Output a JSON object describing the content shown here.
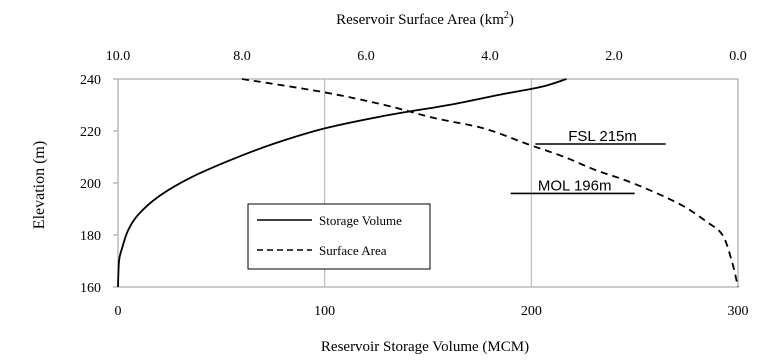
{
  "chart_data": {
    "type": "line",
    "title": "",
    "axes": {
      "bottom": {
        "label": "Reservoir Storage Volume (MCM)",
        "min": 0,
        "max": 300,
        "ticks": [
          "0",
          "100",
          "200",
          "300"
        ],
        "tick_values": [
          0,
          100,
          200,
          300
        ]
      },
      "top": {
        "label_main": "Reservoir Surface Area (km",
        "label_sup": "2",
        "label_end": ")",
        "min": 10.0,
        "max": 0.0,
        "reversed": true,
        "ticks": [
          "10.0",
          "8.0",
          "6.0",
          "4.0",
          "2.0",
          "0.0"
        ],
        "tick_values": [
          10.0,
          8.0,
          6.0,
          4.0,
          2.0,
          0.0
        ]
      },
      "left": {
        "label": "Elevation (m)",
        "min": 160,
        "max": 240,
        "ticks": [
          "160",
          "180",
          "200",
          "220",
          "240"
        ],
        "tick_values": [
          160,
          180,
          200,
          220,
          240
        ]
      }
    },
    "grid": {
      "vertical": true,
      "horizontal": false
    },
    "legend": {
      "placement": "center-left",
      "entries": [
        "Storage Volume",
        "Surface Area"
      ]
    },
    "series": [
      {
        "name": "Storage Volume",
        "style": "solid",
        "axis": "bottom",
        "x": [
          0,
          0.5,
          2,
          5,
          10,
          20,
          35,
          55,
          75,
          100,
          130,
          160,
          185,
          205,
          217
        ],
        "y": [
          160,
          170,
          175,
          182,
          188,
          195,
          202,
          209,
          215,
          221,
          226,
          230,
          234,
          237,
          240
        ]
      },
      {
        "name": "Surface Area",
        "style": "dashed",
        "axis": "top",
        "x": [
          8.0,
          6.7,
          5.7,
          4.9,
          4.1,
          3.4,
          2.8,
          2.3,
          1.7,
          0.95,
          0.5,
          0.25,
          0.1,
          0.0
        ],
        "y": [
          240,
          235,
          230,
          225,
          221,
          215,
          210,
          205,
          200,
          192,
          185,
          180,
          170,
          160
        ]
      }
    ],
    "annotations": [
      {
        "label": "FSL 215m",
        "elevation": 215,
        "x_from": 202,
        "x_to": 265
      },
      {
        "label": "MOL 196m",
        "elevation": 196,
        "x_from": 190,
        "x_to": 250
      }
    ]
  }
}
